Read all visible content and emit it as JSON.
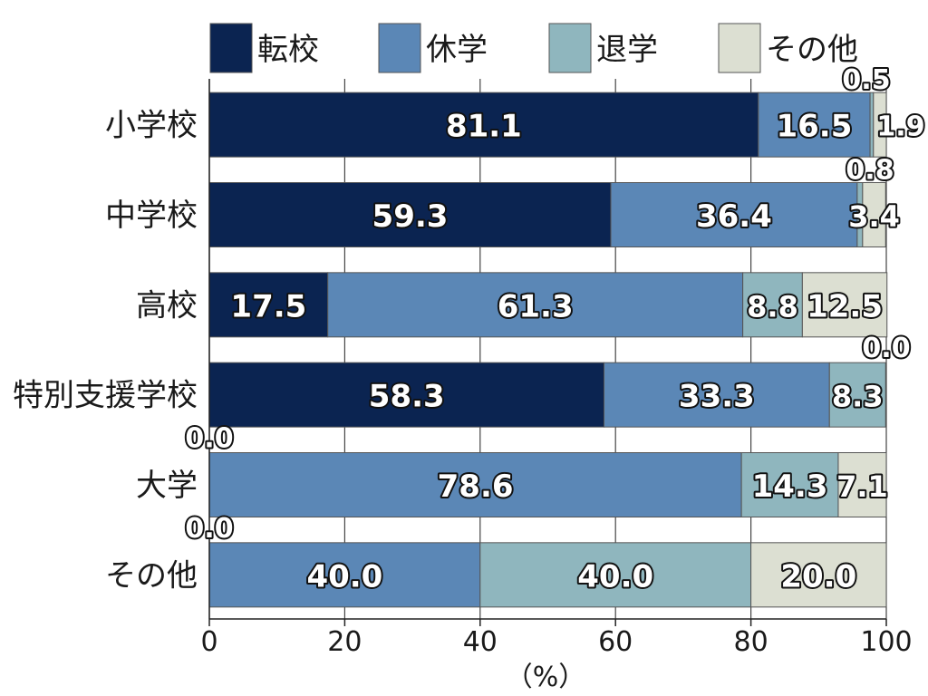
{
  "chart_data": {
    "type": "bar",
    "orientation": "horizontal",
    "stacked": true,
    "legend_position": "top",
    "grid": "vertical",
    "categories": [
      "小学校",
      "中学校",
      "高校",
      "特別支援学校",
      "大学",
      "その他"
    ],
    "series": [
      {
        "name": "転校",
        "color": "#0b2451",
        "values": [
          81.1,
          59.3,
          17.5,
          58.3,
          0.0,
          0.0
        ]
      },
      {
        "name": "休学",
        "color": "#5b87b6",
        "values": [
          16.5,
          36.4,
          61.3,
          33.3,
          78.6,
          40.0
        ]
      },
      {
        "name": "退学",
        "color": "#8fb6be",
        "values": [
          0.5,
          0.8,
          8.8,
          8.3,
          14.3,
          40.0
        ]
      },
      {
        "name": "その他",
        "color": "#dcdfd2",
        "values": [
          1.9,
          3.4,
          12.5,
          0.0,
          7.1,
          20.0
        ]
      }
    ],
    "xlim": [
      0,
      100
    ],
    "xticks": [
      "0",
      "20",
      "40",
      "60",
      "80",
      "100"
    ],
    "xlabel": "（%）"
  }
}
